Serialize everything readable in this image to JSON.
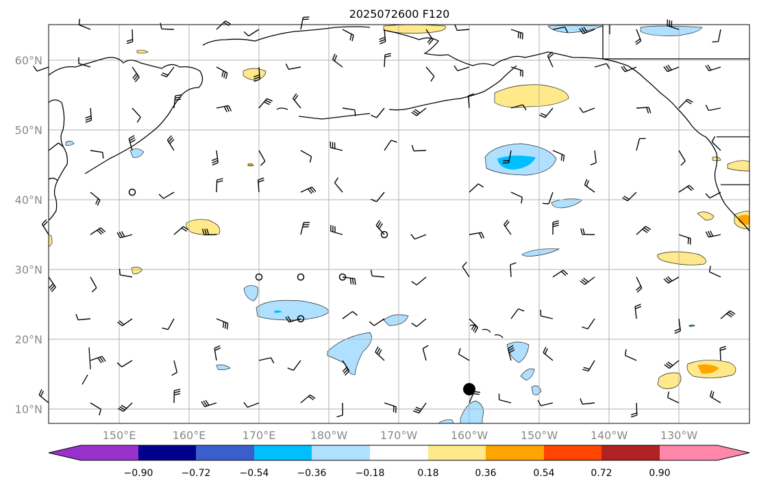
{
  "title": "2025072600 F120",
  "lat_labels": [
    "10°N",
    "20°N",
    "30°N",
    "40°N",
    "50°N",
    "60°N"
  ],
  "lon_labels": [
    "150°E",
    "160°E",
    "170°E",
    "180°W",
    "170°W",
    "160°W",
    "150°W",
    "140°W",
    "130°W"
  ],
  "colorbar": {
    "ticks": [
      "−0.90",
      "−0.72",
      "−0.54",
      "−0.36",
      "−0.18",
      "0.18",
      "0.36",
      "0.54",
      "0.72",
      "0.90"
    ],
    "colors": [
      "#9932cc",
      "#00008b",
      "#3a5fcd",
      "#00bfff",
      "#b0e0ff",
      "#ffffff",
      "#ffe98a",
      "#ffa500",
      "#ff4500",
      "#b22222",
      "#ff88aa"
    ]
  },
  "colors": {
    "coast": "#000000",
    "grid": "#b0b0b0",
    "pos_light": "#ffe98a",
    "pos_mid": "#ffa500",
    "neg_light": "#b0e0ff",
    "neg_mid": "#00bfff"
  },
  "marker": {
    "label": "storm-center"
  }
}
